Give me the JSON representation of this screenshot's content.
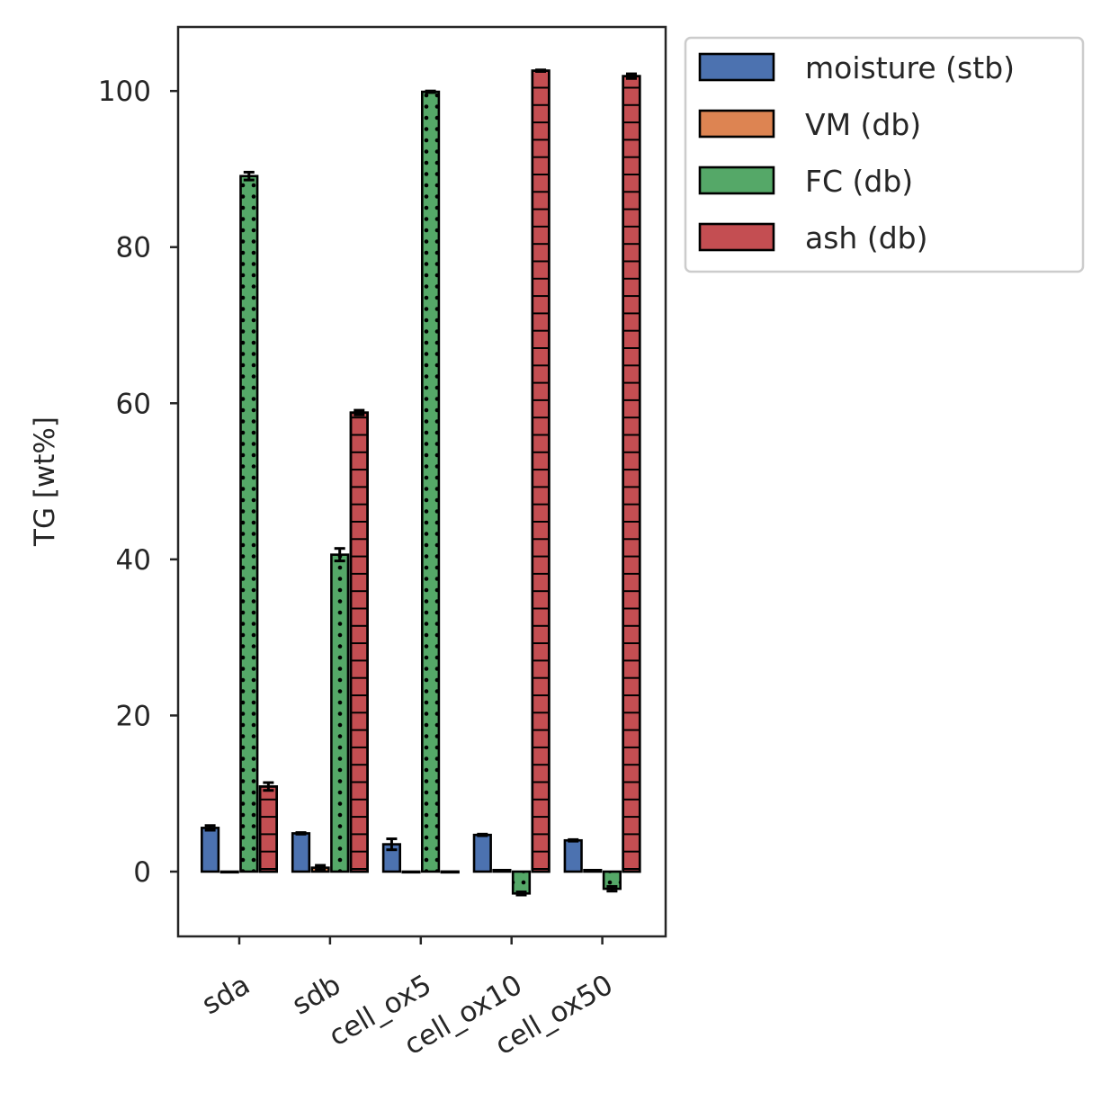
{
  "chart_data": {
    "type": "bar",
    "categories": [
      "sda",
      "sdb",
      "cell_ox5",
      "cell_ox10",
      "cell_ox50"
    ],
    "ylabel": "TG [wt%]",
    "xlabel": "",
    "ylim": [
      -8.3,
      108.2
    ],
    "yticks": [
      0,
      20,
      40,
      60,
      80,
      100
    ],
    "grid": false,
    "legend_position": "outside-top-right",
    "series": [
      {
        "name": "moisture (stb)",
        "color": "#4c72b0",
        "hatch": "none",
        "values": [
          5.6,
          4.9,
          3.5,
          4.7,
          4.0
        ],
        "errors": [
          0.3,
          0.1,
          0.7,
          0.1,
          0.1
        ]
      },
      {
        "name": "VM (db)",
        "color": "#dd8452",
        "hatch": "none",
        "values": [
          0.0,
          0.5,
          0.0,
          0.2,
          0.2
        ],
        "errors": [
          0.0,
          0.3,
          0.0,
          0.0,
          0.0
        ]
      },
      {
        "name": "FC (db)",
        "color": "#55a868",
        "hatch": "dots",
        "values": [
          89.1,
          40.6,
          99.9,
          -2.8,
          -2.2
        ],
        "errors": [
          0.5,
          0.8,
          0.1,
          0.2,
          0.3
        ]
      },
      {
        "name": "ash (db)",
        "color": "#c44e52",
        "hatch": "grid",
        "values": [
          10.9,
          58.8,
          0.0,
          102.6,
          101.9
        ],
        "errors": [
          0.5,
          0.3,
          0.0,
          0.1,
          0.3
        ]
      }
    ]
  }
}
